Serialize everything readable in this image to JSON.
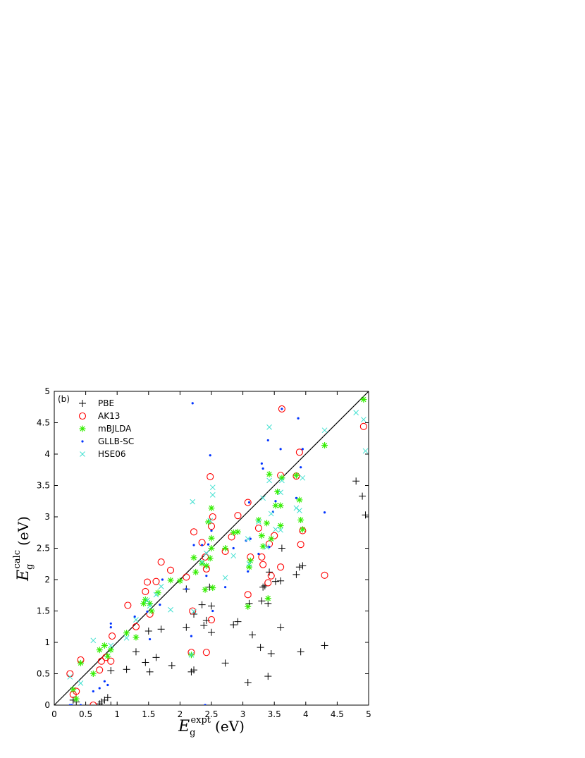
{
  "chart_data": {
    "type": "scatter",
    "panel_label": "(b)",
    "xlabel": {
      "base": "E",
      "sub": "g",
      "sup": "expt",
      "unit": "(eV)"
    },
    "ylabel": {
      "base": "E",
      "sub": "g",
      "sup": "calc",
      "unit": "(eV)"
    },
    "xlim": [
      0,
      5
    ],
    "ylim": [
      0,
      5
    ],
    "xticks": [
      "0",
      "0.5",
      "1",
      "1.5",
      "2",
      "2.5",
      "3",
      "3.5",
      "4",
      "4.5",
      "5"
    ],
    "yticks": [
      "0",
      "0.5",
      "1",
      "1.5",
      "2",
      "2.5",
      "3",
      "3.5",
      "4",
      "4.5",
      "5"
    ],
    "grid": false,
    "legend_position": "top-left",
    "reference_line": {
      "from": [
        0,
        0
      ],
      "to": [
        5,
        5
      ],
      "color": "#000000"
    },
    "series": [
      {
        "name": "PBE",
        "marker": "plus",
        "color": "#000000",
        "points": [
          [
            0.3,
            0.08
          ],
          [
            0.35,
            0.05
          ],
          [
            0.72,
            0.02
          ],
          [
            0.75,
            0.05
          ],
          [
            0.8,
            0.08
          ],
          [
            0.85,
            0.12
          ],
          [
            0.9,
            0.55
          ],
          [
            0.9,
            0.0
          ],
          [
            1.15,
            0.57
          ],
          [
            1.3,
            0.85
          ],
          [
            1.45,
            0.68
          ],
          [
            1.5,
            1.18
          ],
          [
            1.52,
            0.53
          ],
          [
            1.62,
            0.76
          ],
          [
            1.7,
            1.21
          ],
          [
            1.87,
            0.63
          ],
          [
            2.1,
            1.24
          ],
          [
            2.1,
            1.85
          ],
          [
            2.18,
            0.53
          ],
          [
            2.22,
            0.56
          ],
          [
            2.22,
            1.45
          ],
          [
            2.35,
            1.6
          ],
          [
            2.38,
            1.27
          ],
          [
            2.42,
            1.35
          ],
          [
            2.47,
            1.88
          ],
          [
            2.5,
            1.58
          ],
          [
            2.5,
            1.16
          ],
          [
            2.72,
            0.67
          ],
          [
            2.85,
            1.28
          ],
          [
            2.92,
            1.33
          ],
          [
            3.08,
            0.36
          ],
          [
            3.1,
            1.62
          ],
          [
            3.15,
            1.12
          ],
          [
            3.28,
            0.92
          ],
          [
            3.3,
            1.66
          ],
          [
            3.32,
            1.88
          ],
          [
            3.35,
            1.9
          ],
          [
            3.4,
            1.62
          ],
          [
            3.42,
            2.12
          ],
          [
            3.4,
            0.46
          ],
          [
            3.45,
            0.82
          ],
          [
            3.52,
            1.97
          ],
          [
            3.6,
            1.98
          ],
          [
            3.6,
            1.24
          ],
          [
            3.62,
            2.5
          ],
          [
            3.85,
            2.08
          ],
          [
            3.9,
            2.2
          ],
          [
            3.92,
            0.85
          ],
          [
            3.95,
            2.22
          ],
          [
            4.3,
            0.95
          ],
          [
            4.8,
            3.57
          ],
          [
            4.9,
            3.33
          ],
          [
            4.95,
            3.03
          ]
        ]
      },
      {
        "name": "AK13",
        "marker": "circle",
        "color": "#ff0000",
        "points": [
          [
            0.25,
            0.5
          ],
          [
            0.3,
            0.17
          ],
          [
            0.35,
            0.22
          ],
          [
            0.42,
            0.72
          ],
          [
            0.62,
            0.0
          ],
          [
            0.72,
            0.56
          ],
          [
            0.75,
            0.7
          ],
          [
            0.82,
            0.76
          ],
          [
            0.9,
            0.7
          ],
          [
            0.92,
            1.1
          ],
          [
            1.17,
            1.59
          ],
          [
            1.3,
            1.25
          ],
          [
            1.45,
            1.81
          ],
          [
            1.48,
            1.96
          ],
          [
            1.52,
            1.45
          ],
          [
            1.62,
            1.97
          ],
          [
            1.7,
            2.28
          ],
          [
            1.85,
            2.15
          ],
          [
            2.1,
            2.04
          ],
          [
            2.18,
            0.84
          ],
          [
            2.2,
            1.5
          ],
          [
            2.22,
            2.76
          ],
          [
            2.35,
            2.59
          ],
          [
            2.4,
            2.36
          ],
          [
            2.42,
            0.84
          ],
          [
            2.42,
            2.17
          ],
          [
            2.48,
            3.64
          ],
          [
            2.5,
            2.85
          ],
          [
            2.52,
            3.0
          ],
          [
            2.5,
            1.36
          ],
          [
            2.72,
            2.45
          ],
          [
            2.82,
            2.68
          ],
          [
            2.92,
            3.02
          ],
          [
            3.08,
            3.23
          ],
          [
            3.08,
            1.76
          ],
          [
            3.12,
            2.36
          ],
          [
            3.25,
            2.82
          ],
          [
            3.3,
            2.36
          ],
          [
            3.32,
            2.24
          ],
          [
            3.4,
            1.95
          ],
          [
            3.42,
            2.57
          ],
          [
            3.45,
            2.06
          ],
          [
            3.5,
            2.7
          ],
          [
            3.6,
            3.66
          ],
          [
            3.6,
            2.2
          ],
          [
            3.62,
            4.72
          ],
          [
            3.85,
            3.65
          ],
          [
            3.9,
            4.03
          ],
          [
            3.92,
            2.56
          ],
          [
            3.95,
            2.78
          ],
          [
            4.3,
            2.07
          ],
          [
            4.92,
            4.44
          ]
        ]
      },
      {
        "name": "mBJLDA",
        "marker": "asterisk",
        "color": "#33ee00",
        "points": [
          [
            0.3,
            0.25
          ],
          [
            0.35,
            0.1
          ],
          [
            0.42,
            0.67
          ],
          [
            0.62,
            0.5
          ],
          [
            0.72,
            0.88
          ],
          [
            0.8,
            0.95
          ],
          [
            0.85,
            0.78
          ],
          [
            0.9,
            0.88
          ],
          [
            1.15,
            1.15
          ],
          [
            1.3,
            1.08
          ],
          [
            1.42,
            1.62
          ],
          [
            1.45,
            1.68
          ],
          [
            1.52,
            1.62
          ],
          [
            1.55,
            1.5
          ],
          [
            1.65,
            1.79
          ],
          [
            1.85,
            1.99
          ],
          [
            2.0,
            1.98
          ],
          [
            2.18,
            0.8
          ],
          [
            2.22,
            2.35
          ],
          [
            2.25,
            2.12
          ],
          [
            2.35,
            2.26
          ],
          [
            2.4,
            1.84
          ],
          [
            2.42,
            2.22
          ],
          [
            2.45,
            2.92
          ],
          [
            2.48,
            2.34
          ],
          [
            2.5,
            3.14
          ],
          [
            2.5,
            2.66
          ],
          [
            2.5,
            2.5
          ],
          [
            2.52,
            1.87
          ],
          [
            2.72,
            2.5
          ],
          [
            2.85,
            2.75
          ],
          [
            2.92,
            2.76
          ],
          [
            3.08,
            1.57
          ],
          [
            3.1,
            2.2
          ],
          [
            3.12,
            2.3
          ],
          [
            3.25,
            2.95
          ],
          [
            3.3,
            2.7
          ],
          [
            3.32,
            2.53
          ],
          [
            3.38,
            2.9
          ],
          [
            3.4,
            1.7
          ],
          [
            3.42,
            3.68
          ],
          [
            3.45,
            2.65
          ],
          [
            3.52,
            3.18
          ],
          [
            3.55,
            3.4
          ],
          [
            3.6,
            3.18
          ],
          [
            3.6,
            2.86
          ],
          [
            3.62,
            3.62
          ],
          [
            3.85,
            3.66
          ],
          [
            3.9,
            3.27
          ],
          [
            3.92,
            2.95
          ],
          [
            3.95,
            2.8
          ],
          [
            4.3,
            4.14
          ],
          [
            4.92,
            4.87
          ]
        ]
      },
      {
        "name": "GLLB-SC",
        "marker": "dot",
        "color": "#0033ff",
        "points": [
          [
            0.25,
            0.0
          ],
          [
            0.28,
            0.0
          ],
          [
            0.42,
            0.0
          ],
          [
            0.62,
            0.22
          ],
          [
            0.72,
            0.27
          ],
          [
            0.8,
            0.38
          ],
          [
            0.85,
            0.32
          ],
          [
            0.9,
            1.3
          ],
          [
            0.9,
            1.24
          ],
          [
            1.28,
            1.41
          ],
          [
            1.48,
            1.49
          ],
          [
            1.52,
            1.05
          ],
          [
            1.68,
            1.6
          ],
          [
            1.72,
            2.0
          ],
          [
            2.1,
            1.85
          ],
          [
            2.18,
            1.1
          ],
          [
            2.2,
            4.81
          ],
          [
            2.22,
            2.55
          ],
          [
            2.35,
            2.55
          ],
          [
            2.4,
            0.0
          ],
          [
            2.4,
            0.0
          ],
          [
            2.42,
            2.06
          ],
          [
            2.45,
            2.56
          ],
          [
            2.48,
            3.98
          ],
          [
            2.5,
            2.78
          ],
          [
            2.52,
            1.5
          ],
          [
            2.72,
            1.88
          ],
          [
            2.85,
            2.5
          ],
          [
            3.05,
            2.62
          ],
          [
            3.08,
            2.13
          ],
          [
            3.1,
            3.23
          ],
          [
            3.12,
            2.65
          ],
          [
            3.25,
            2.41
          ],
          [
            3.3,
            3.85
          ],
          [
            3.32,
            3.77
          ],
          [
            3.4,
            4.22
          ],
          [
            3.42,
            2.52
          ],
          [
            3.48,
            3.08
          ],
          [
            3.52,
            3.25
          ],
          [
            3.6,
            4.08
          ],
          [
            3.62,
            4.72
          ],
          [
            3.85,
            3.3
          ],
          [
            3.88,
            4.57
          ],
          [
            3.92,
            3.79
          ],
          [
            3.95,
            4.08
          ],
          [
            4.3,
            3.07
          ]
        ]
      },
      {
        "name": "HSE06",
        "marker": "x",
        "color": "#40e0d0",
        "points": [
          [
            0.25,
            0.45
          ],
          [
            0.42,
            0.35
          ],
          [
            0.62,
            1.03
          ],
          [
            0.9,
            0.95
          ],
          [
            1.15,
            1.07
          ],
          [
            1.3,
            1.36
          ],
          [
            1.48,
            1.67
          ],
          [
            1.52,
            1.58
          ],
          [
            1.62,
            1.76
          ],
          [
            1.7,
            1.89
          ],
          [
            1.85,
            1.52
          ],
          [
            2.18,
            0.8
          ],
          [
            2.2,
            3.24
          ],
          [
            2.22,
            1.49
          ],
          [
            2.35,
            2.28
          ],
          [
            2.42,
            2.42
          ],
          [
            2.48,
            2.94
          ],
          [
            2.52,
            3.47
          ],
          [
            2.52,
            3.35
          ],
          [
            2.72,
            2.03
          ],
          [
            2.85,
            2.38
          ],
          [
            3.08,
            2.65
          ],
          [
            3.1,
            2.25
          ],
          [
            3.25,
            2.92
          ],
          [
            3.32,
            3.3
          ],
          [
            3.38,
            2.52
          ],
          [
            3.42,
            4.43
          ],
          [
            3.42,
            3.58
          ],
          [
            3.45,
            3.05
          ],
          [
            3.52,
            2.8
          ],
          [
            3.6,
            3.39
          ],
          [
            3.6,
            2.79
          ],
          [
            3.62,
            3.58
          ],
          [
            3.85,
            3.14
          ],
          [
            3.9,
            3.1
          ],
          [
            3.95,
            3.62
          ],
          [
            4.3,
            4.38
          ],
          [
            4.8,
            4.66
          ],
          [
            4.92,
            4.55
          ],
          [
            4.95,
            4.05
          ]
        ]
      }
    ]
  }
}
